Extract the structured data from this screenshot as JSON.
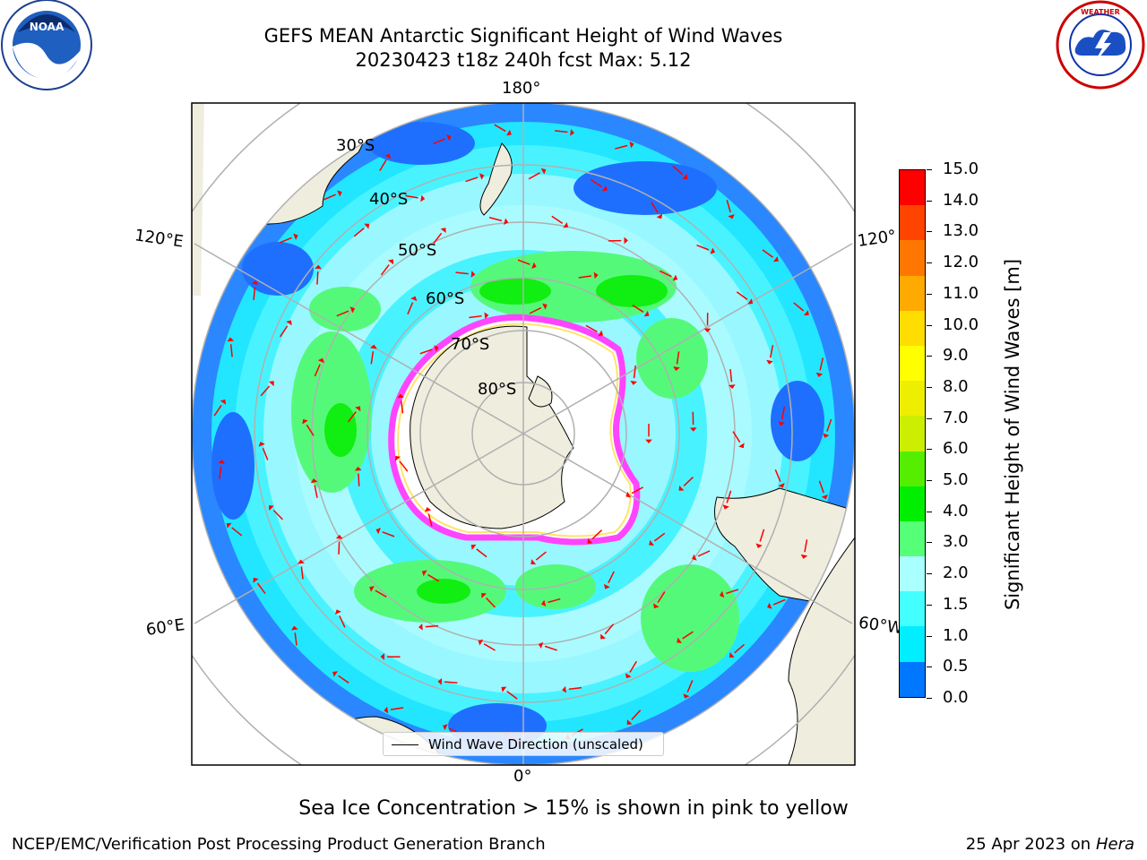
{
  "header": {
    "title_line1": "GEFS MEAN Antarctic Significant Height of Wind Waves",
    "title_line2": "20230423 t18z 240h fcst   Max: 5.12"
  },
  "logos": {
    "left": "NOAA",
    "right": "NATIONAL WEATHER SERVICE"
  },
  "map": {
    "projection": "south-polar-stereographic",
    "longitude_labels": {
      "top": "180°",
      "bottom": "0°",
      "left_upper": "120°E",
      "left_lower": "60°E",
      "right_upper": "120°",
      "right_lower": "60°W"
    },
    "latitude_labels": [
      "30°S",
      "40°S",
      "50°S",
      "60°S",
      "70°S",
      "80°S"
    ],
    "legend_label": "Wind Wave Direction (unscaled)",
    "land_color": "#efedde",
    "ice_edge_colors": [
      "#ff33ff",
      "#ffee44"
    ],
    "arrow_color": "#ff0000"
  },
  "colorbar": {
    "title": "Significant Height of Wind Waves [m]",
    "tick_labels": [
      "0.0",
      "0.5",
      "1.0",
      "1.5",
      "2.0",
      "3.0",
      "4.0",
      "5.0",
      "6.0",
      "7.0",
      "8.0",
      "9.0",
      "10.0",
      "11.0",
      "12.0",
      "13.0",
      "14.0",
      "15.0"
    ],
    "segment_colors": [
      "#0000ff",
      "#0077ff",
      "#00eeff",
      "#44ffff",
      "#aaffff",
      "#55ff77",
      "#00ee00",
      "#55ee00",
      "#ccee00",
      "#eeee00",
      "#ffff00",
      "#ffdd00",
      "#ffaa00",
      "#ff7700",
      "#ff4400"
    ],
    "top_color": "#ff0000"
  },
  "footer": {
    "note": "Sea Ice Concentration > 15% is shown in pink to yellow",
    "left": "NCEP/EMC/Verification Post Processing Product Generation Branch",
    "right_prefix": "25 Apr 2023 on ",
    "right_host": "Hera"
  }
}
